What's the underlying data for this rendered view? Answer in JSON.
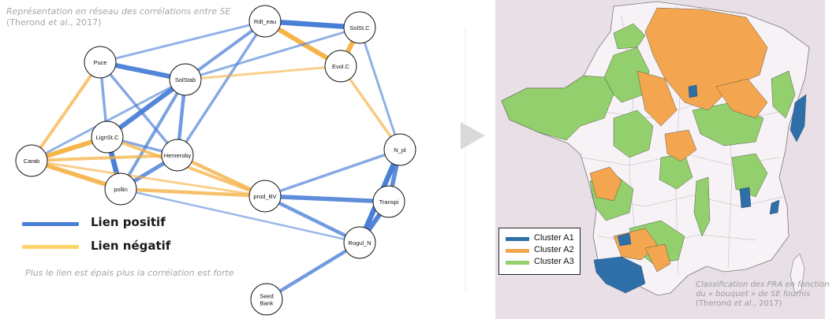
{
  "network": {
    "title": "Représentation en réseau des corrélations entre SE",
    "reference": "(Therond et al., 2017)",
    "reference_authors": "(Therond ",
    "reference_etal": "et al.",
    "reference_year": ", 2017)",
    "nodes": [
      {
        "id": "Rdt_eau",
        "label": "Rdt_eau"
      },
      {
        "id": "SolSt.C",
        "label": "SolSt.C"
      },
      {
        "id": "Puce",
        "label": "Puce"
      },
      {
        "id": "SolStab",
        "label": "SolStab"
      },
      {
        "id": "Evol.C",
        "label": "Evol.C"
      },
      {
        "id": "LignSt.C",
        "label": "LignSt.C"
      },
      {
        "id": "Hemeroby",
        "label": "Hemeroby"
      },
      {
        "id": "Carab",
        "label": "Carab"
      },
      {
        "id": "pollin",
        "label": "pollin"
      },
      {
        "id": "N_pl",
        "label": "N_pl"
      },
      {
        "id": "prod_BV",
        "label": "prod_BV"
      },
      {
        "id": "Transpi",
        "label": "Transpi"
      },
      {
        "id": "Rogul_N",
        "label": "Rogul_N"
      },
      {
        "id": "Seed Bank",
        "label": "Seed Bank",
        "label_lines": [
          "Seed",
          "Bank"
        ]
      }
    ],
    "edges": [
      {
        "from": "Rdt_eau",
        "to": "SolSt.C",
        "sign": "positive",
        "strength": 1.0
      },
      {
        "from": "Rdt_eau",
        "to": "Evol.C",
        "sign": "negative",
        "strength": 0.9
      },
      {
        "from": "SolSt.C",
        "to": "Evol.C",
        "sign": "negative",
        "strength": 0.9
      },
      {
        "from": "Rdt_eau",
        "to": "SolStab",
        "sign": "positive",
        "strength": 0.5
      },
      {
        "from": "Rdt_eau",
        "to": "Puce",
        "sign": "positive",
        "strength": 0.3
      },
      {
        "from": "Rdt_eau",
        "to": "Hemeroby",
        "sign": "positive",
        "strength": 0.4
      },
      {
        "from": "SolSt.C",
        "to": "SolStab",
        "sign": "positive",
        "strength": 0.3
      },
      {
        "from": "SolSt.C",
        "to": "N_pl",
        "sign": "positive",
        "strength": 0.3
      },
      {
        "from": "Evol.C",
        "to": "SolStab",
        "sign": "negative",
        "strength": 0.3
      },
      {
        "from": "Evol.C",
        "to": "N_pl",
        "sign": "negative",
        "strength": 0.4
      },
      {
        "from": "Puce",
        "to": "SolStab",
        "sign": "positive",
        "strength": 0.9
      },
      {
        "from": "Puce",
        "to": "Carab",
        "sign": "negative",
        "strength": 0.5
      },
      {
        "from": "Puce",
        "to": "LignSt.C",
        "sign": "positive",
        "strength": 0.4
      },
      {
        "from": "Puce",
        "to": "Hemeroby",
        "sign": "positive",
        "strength": 0.4
      },
      {
        "from": "SolStab",
        "to": "LignSt.C",
        "sign": "positive",
        "strength": 0.9
      },
      {
        "from": "SolStab",
        "to": "Hemeroby",
        "sign": "positive",
        "strength": 0.6
      },
      {
        "from": "SolStab",
        "to": "pollin",
        "sign": "positive",
        "strength": 0.5
      },
      {
        "from": "SolStab",
        "to": "Carab",
        "sign": "positive",
        "strength": 0.3
      },
      {
        "from": "LignSt.C",
        "to": "Carab",
        "sign": "negative",
        "strength": 0.9
      },
      {
        "from": "LignSt.C",
        "to": "pollin",
        "sign": "positive",
        "strength": 1.0
      },
      {
        "from": "LignSt.C",
        "to": "Hemeroby",
        "sign": "positive",
        "strength": 0.4
      },
      {
        "from": "LignSt.C",
        "to": "prod_BV",
        "sign": "negative",
        "strength": 0.5
      },
      {
        "from": "Hemeroby",
        "to": "pollin",
        "sign": "positive",
        "strength": 0.7
      },
      {
        "from": "Hemeroby",
        "to": "Carab",
        "sign": "negative",
        "strength": 0.5
      },
      {
        "from": "Hemeroby",
        "to": "prod_BV",
        "sign": "negative",
        "strength": 0.6
      },
      {
        "from": "Carab",
        "to": "pollin",
        "sign": "negative",
        "strength": 0.8
      },
      {
        "from": "Carab",
        "to": "prod_BV",
        "sign": "negative",
        "strength": 0.3
      },
      {
        "from": "pollin",
        "to": "prod_BV",
        "sign": "negative",
        "strength": 0.6
      },
      {
        "from": "N_pl",
        "to": "prod_BV",
        "sign": "positive",
        "strength": 0.4
      },
      {
        "from": "N_pl",
        "to": "Transpi",
        "sign": "positive",
        "strength": 0.8
      },
      {
        "from": "N_pl",
        "to": "Rogul_N",
        "sign": "positive",
        "strength": 1.0
      },
      {
        "from": "prod_BV",
        "to": "Transpi",
        "sign": "positive",
        "strength": 0.8
      },
      {
        "from": "prod_BV",
        "to": "Rogul_N",
        "sign": "positive",
        "strength": 0.6
      },
      {
        "from": "Transpi",
        "to": "Rogul_N",
        "sign": "positive",
        "strength": 0.9
      },
      {
        "from": "Rogul_N",
        "to": "Seed Bank",
        "sign": "positive",
        "strength": 0.6
      },
      {
        "from": "Rogul_N",
        "to": "pollin",
        "sign": "positive",
        "strength": 0.2
      }
    ],
    "legend": {
      "positive_label": "Lien positif",
      "negative_label": "Lien négatif"
    },
    "note": "Plus le lien est épais plus la corrélation est forte"
  },
  "map": {
    "legend": [
      {
        "label": "Cluster A1"
      },
      {
        "label": "Cluster A2"
      },
      {
        "label": "Cluster A3"
      }
    ],
    "caption_line1": "Classification des PRA en fonction",
    "caption_line2": "du « bouquet » de SE fournis",
    "caption_ref_a": "(Therond ",
    "caption_ref_etal": "et al.",
    "caption_ref_b": ", 2017)"
  },
  "colors": {
    "positive": "#4a7fd6",
    "negative": "#f5b041",
    "cluster_a1": "#2f6fa8",
    "cluster_a2": "#f3a64f",
    "cluster_a3": "#93cf6c",
    "map_background": "#e8e0e6",
    "arrow": "#d9d9d9"
  }
}
